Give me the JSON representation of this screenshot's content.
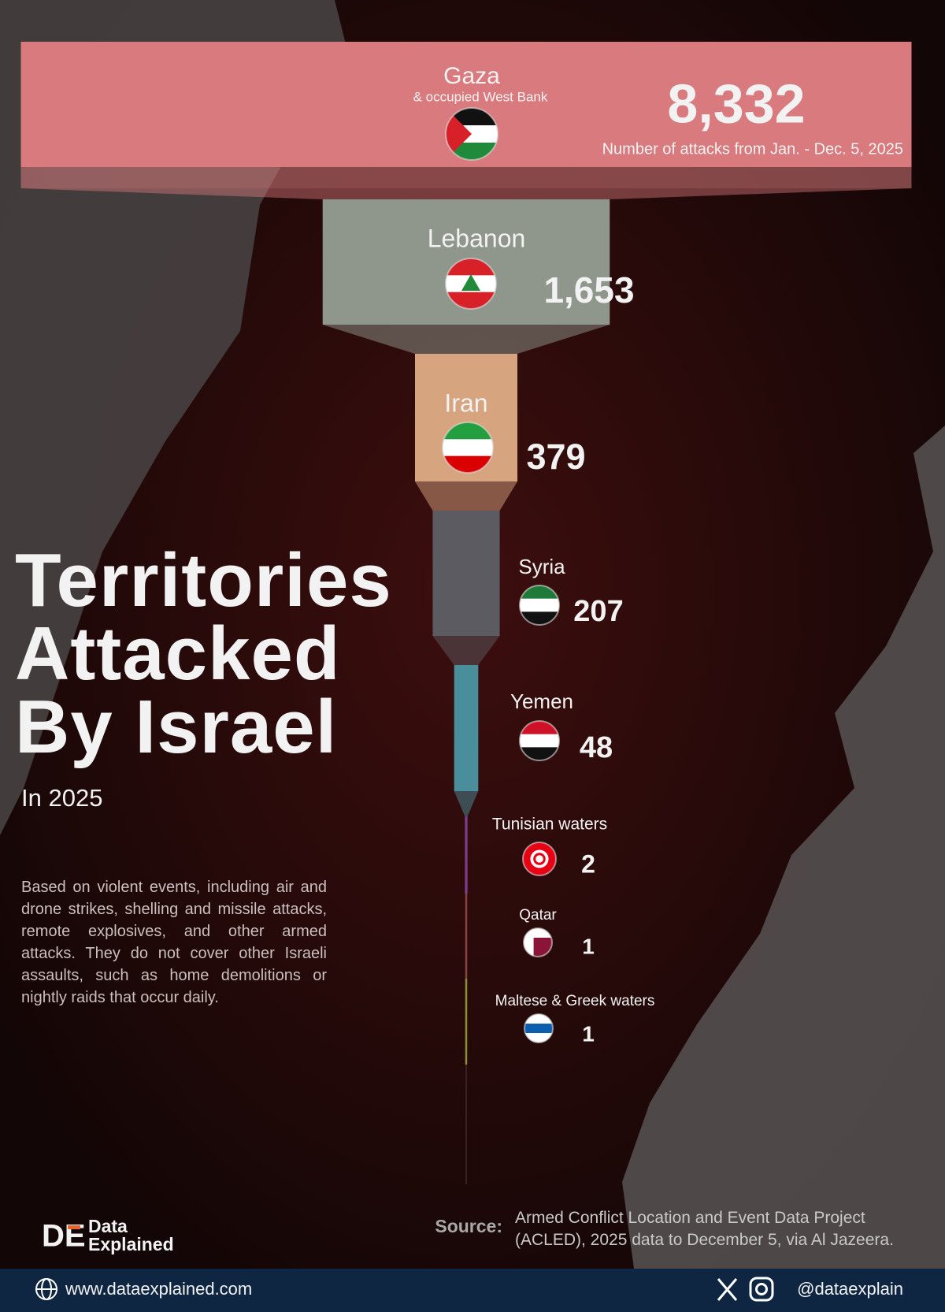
{
  "chart_data": {
    "type": "funnel",
    "title": "Territories\nAttacked\nBy Israel",
    "subtitle": "In 2025",
    "categories": [
      "Gaza",
      "Lebanon",
      "Iran",
      "Syria",
      "Yemen",
      "Tunisian waters",
      "Qatar",
      "Maltese & Greek waters"
    ],
    "values": [
      8332,
      1653,
      379,
      207,
      48,
      2,
      1,
      1
    ],
    "value_labels": [
      "8,332",
      "1,653",
      "379",
      "207",
      "48",
      "2",
      "1",
      "1"
    ],
    "colors": [
      "#d97b7e",
      "#8f978c",
      "#d6a47e",
      "#5c5b61",
      "#4a8e9c",
      "#7c3c88",
      "#8b4242",
      "#8c8f3a"
    ],
    "annotations": [
      "& occupied West Bank",
      "Number of attacks  from Jan. - Dec. 5, 2025"
    ]
  },
  "note": "Based on violent events, including air and drone strikes, shelling and missile attacks, remote explosives, and other armed attacks. They do not cover other Israeli assaults, such as home demolitions or nightly raids that occur daily.",
  "source": {
    "label": "Source:",
    "text": "Armed Conflict Location and Event Data Project (ACLED), 2025 data to December 5, via Al Jazeera."
  },
  "brand": {
    "mark": "DE",
    "name": "Data\nExplained"
  },
  "footer": {
    "website": "www.dataexplained.com",
    "handle": "@dataexplain"
  }
}
